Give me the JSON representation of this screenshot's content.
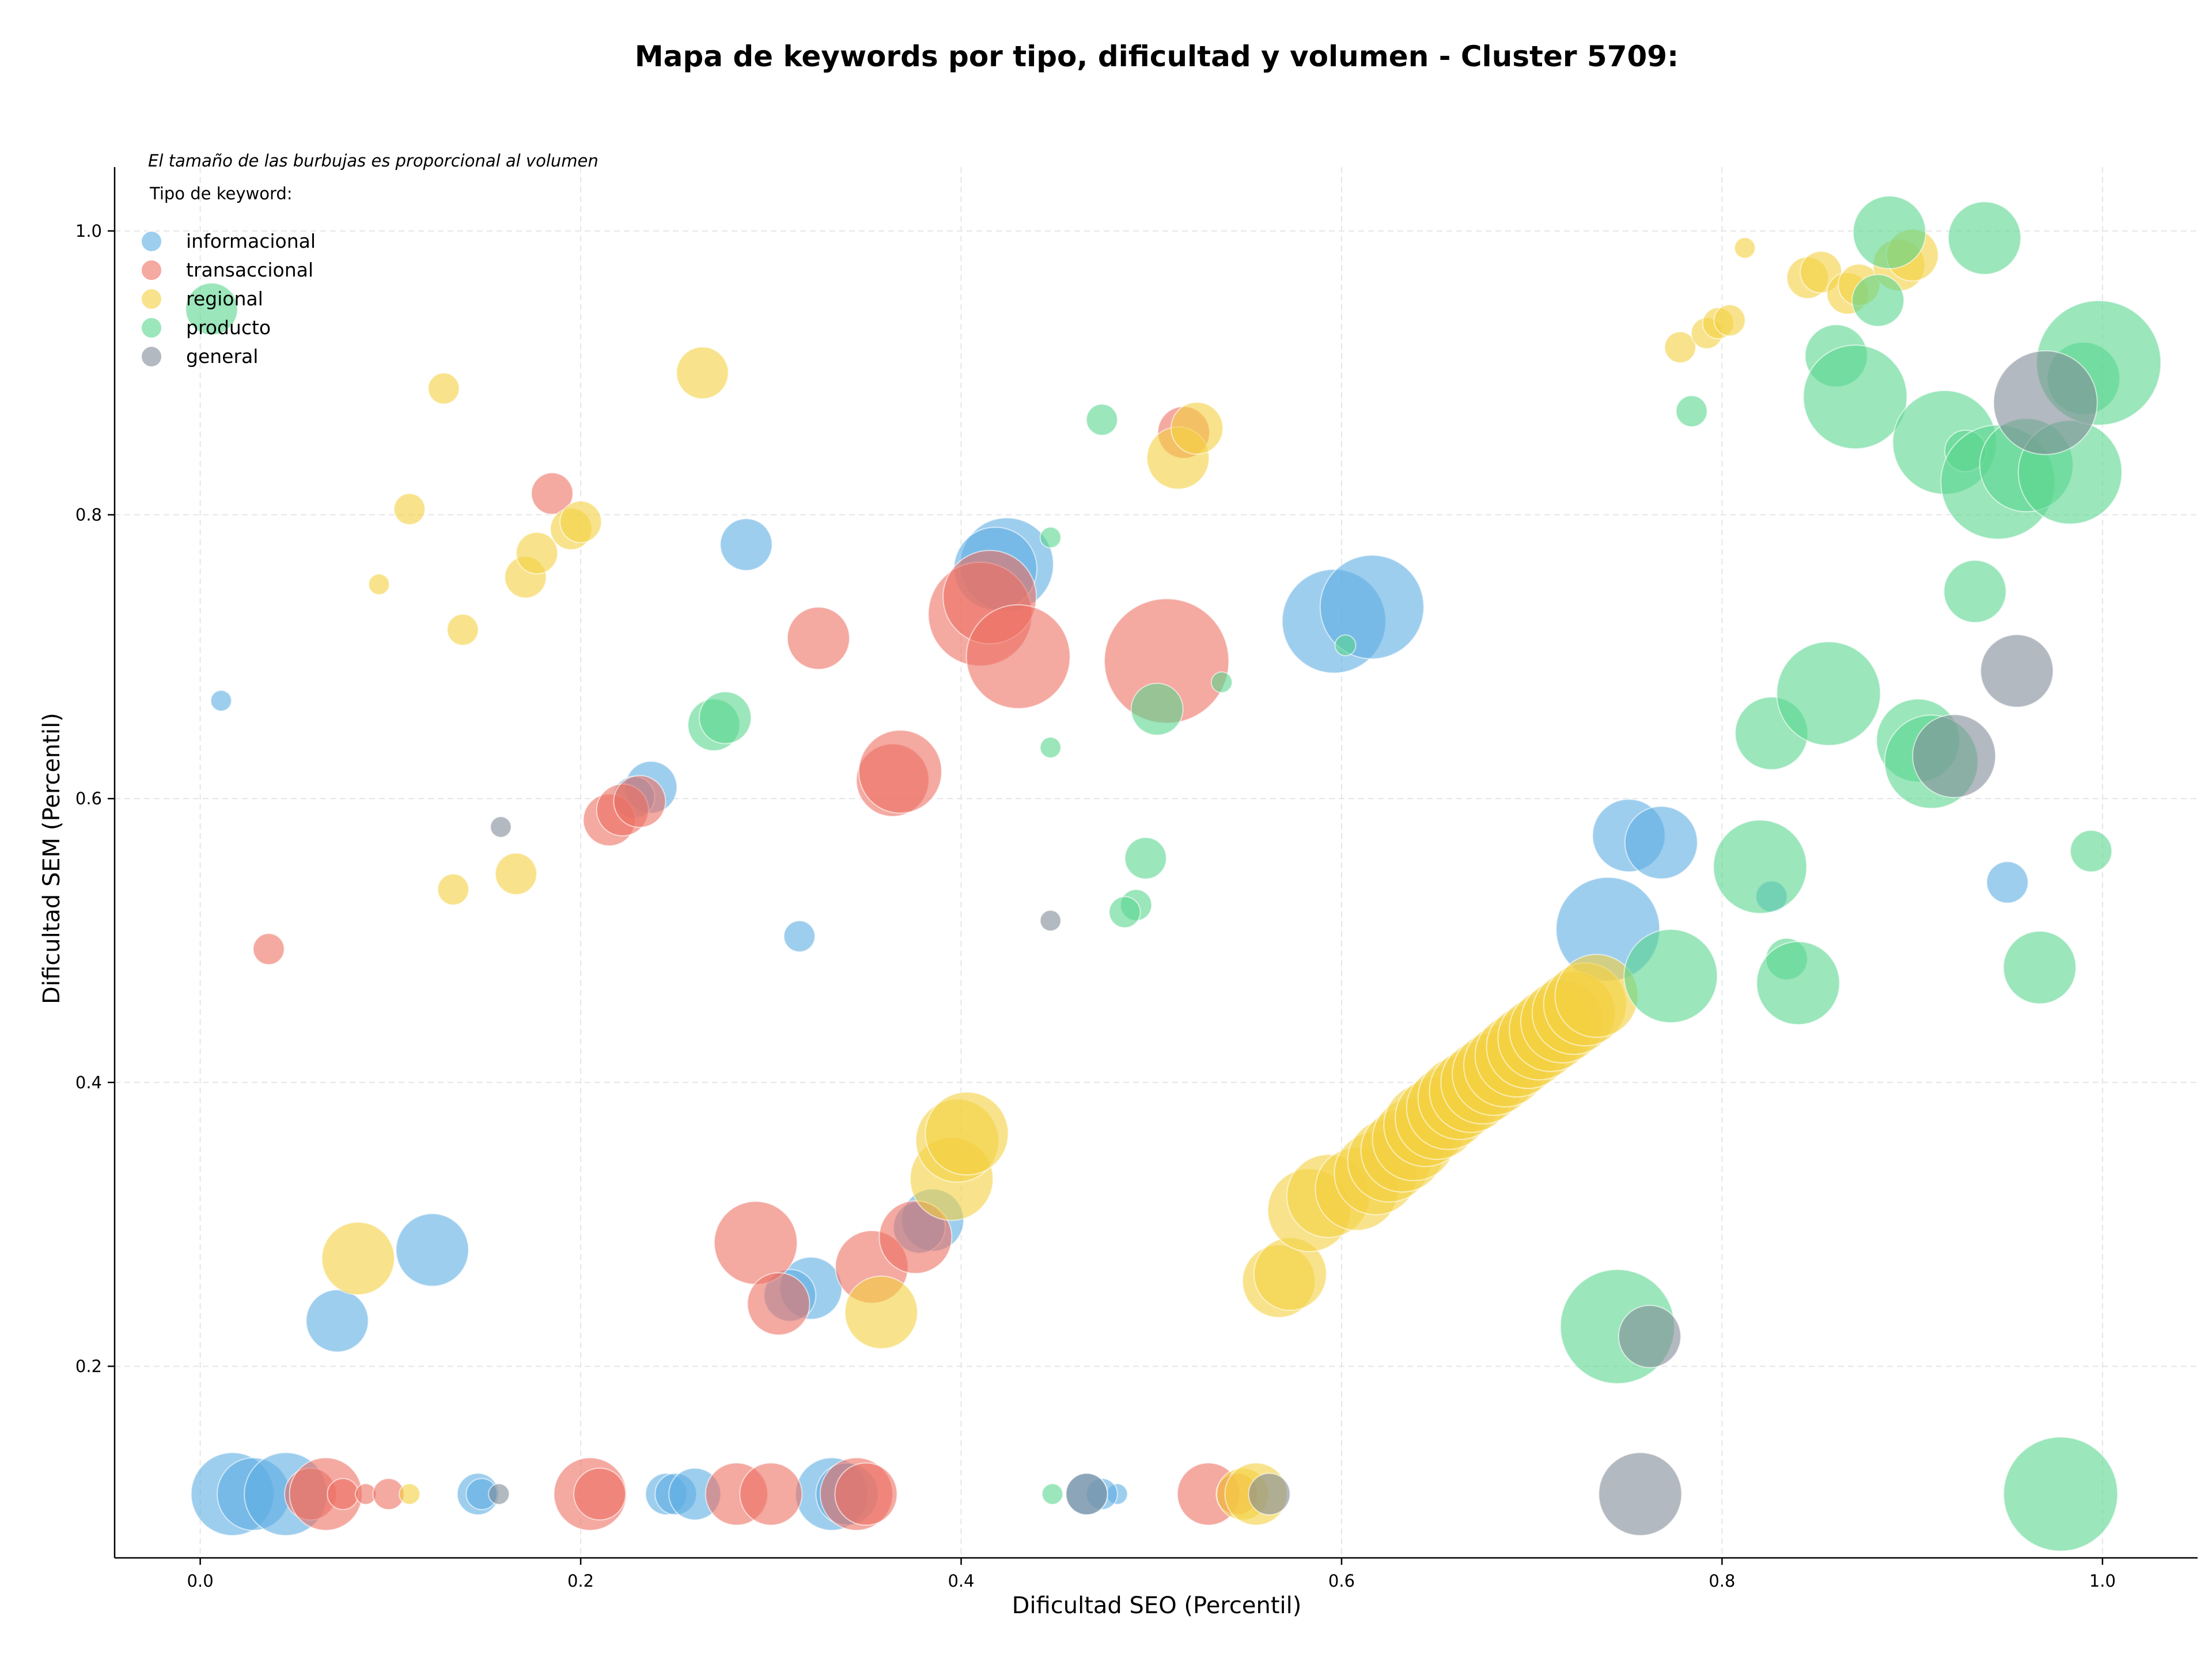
{
  "chart_data": {
    "type": "scatter",
    "title": "Mapa de keywords por tipo, dificultad y volumen - Cluster 5709:",
    "xlabel": "Dificultad SEO (Percentil)",
    "ylabel": "Dificultad SEM (Percentil)",
    "xlim": [
      -0.045,
      1.05
    ],
    "ylim": [
      0.065,
      1.045
    ],
    "xticks": [
      "0.0",
      "0.2",
      "0.4",
      "0.6",
      "0.8",
      "1.0"
    ],
    "yticks": [
      "0.2",
      "0.4",
      "0.6",
      "0.8",
      "1.0"
    ],
    "grid": true,
    "note": "El tamaño de las burbujas es proporcional al volumen",
    "legend": {
      "title": "Tipo de keyword:",
      "placement": "top-left",
      "entries": [
        "informacional",
        "transaccional",
        "regional",
        "producto",
        "general"
      ]
    },
    "series": [
      {
        "name": "informacional",
        "color": "#5dade2",
        "points": [
          [
            0.011,
            0.669,
            2
          ],
          [
            0.122,
            0.282,
            7
          ],
          [
            0.072,
            0.232,
            6
          ],
          [
            0.287,
            0.779,
            5
          ],
          [
            0.237,
            0.608,
            5
          ],
          [
            0.228,
            0.601,
            4
          ],
          [
            0.315,
            0.503,
            3
          ],
          [
            0.321,
            0.255,
            6
          ],
          [
            0.31,
            0.25,
            5
          ],
          [
            0.385,
            0.303,
            6
          ],
          [
            0.378,
            0.298,
            5
          ],
          [
            0.424,
            0.765,
            9
          ],
          [
            0.418,
            0.762,
            8
          ],
          [
            0.596,
            0.725,
            10
          ],
          [
            0.616,
            0.735,
            10
          ],
          [
            0.74,
            0.508,
            10
          ],
          [
            0.751,
            0.574,
            7
          ],
          [
            0.768,
            0.569,
            7
          ],
          [
            0.826,
            0.531,
            3
          ],
          [
            0.95,
            0.541,
            4
          ],
          [
            0.017,
            0.11,
            8
          ],
          [
            0.028,
            0.11,
            7
          ],
          [
            0.045,
            0.11,
            8
          ],
          [
            0.146,
            0.11,
            4
          ],
          [
            0.148,
            0.11,
            3
          ],
          [
            0.245,
            0.11,
            4
          ],
          [
            0.25,
            0.11,
            4
          ],
          [
            0.26,
            0.11,
            5
          ],
          [
            0.332,
            0.11,
            7
          ],
          [
            0.34,
            0.11,
            6
          ],
          [
            0.482,
            0.11,
            2
          ],
          [
            0.474,
            0.11,
            3
          ],
          [
            0.466,
            0.11,
            4
          ]
        ]
      },
      {
        "name": "transaccional",
        "color": "#ec7063",
        "points": [
          [
            0.036,
            0.494,
            3
          ],
          [
            0.185,
            0.815,
            4
          ],
          [
            0.215,
            0.585,
            5
          ],
          [
            0.222,
            0.592,
            5
          ],
          [
            0.231,
            0.598,
            5
          ],
          [
            0.325,
            0.713,
            6
          ],
          [
            0.364,
            0.613,
            7
          ],
          [
            0.368,
            0.619,
            8
          ],
          [
            0.292,
            0.287,
            8
          ],
          [
            0.304,
            0.244,
            6
          ],
          [
            0.353,
            0.27,
            7
          ],
          [
            0.376,
            0.291,
            7
          ],
          [
            0.41,
            0.73,
            10
          ],
          [
            0.415,
            0.742,
            9
          ],
          [
            0.43,
            0.7,
            10
          ],
          [
            0.508,
            0.697,
            12
          ],
          [
            0.517,
            0.858,
            5
          ],
          [
            0.058,
            0.11,
            5
          ],
          [
            0.066,
            0.11,
            7
          ],
          [
            0.075,
            0.11,
            3
          ],
          [
            0.087,
            0.11,
            2
          ],
          [
            0.099,
            0.11,
            3
          ],
          [
            0.205,
            0.11,
            7
          ],
          [
            0.21,
            0.11,
            5
          ],
          [
            0.282,
            0.11,
            6
          ],
          [
            0.3,
            0.11,
            6
          ],
          [
            0.345,
            0.11,
            7
          ],
          [
            0.35,
            0.11,
            6
          ],
          [
            0.53,
            0.11,
            6
          ],
          [
            0.545,
            0.11,
            4
          ]
        ]
      },
      {
        "name": "regional",
        "color": "#f4d03f",
        "points": [
          [
            0.128,
            0.889,
            3
          ],
          [
            0.11,
            0.804,
            3
          ],
          [
            0.094,
            0.751,
            2
          ],
          [
            0.138,
            0.719,
            3
          ],
          [
            0.171,
            0.756,
            4
          ],
          [
            0.177,
            0.773,
            4
          ],
          [
            0.195,
            0.79,
            4
          ],
          [
            0.2,
            0.795,
            4
          ],
          [
            0.133,
            0.536,
            3
          ],
          [
            0.166,
            0.547,
            4
          ],
          [
            0.264,
            0.9,
            5
          ],
          [
            0.083,
            0.276,
            7
          ],
          [
            0.358,
            0.238,
            7
          ],
          [
            0.395,
            0.332,
            8
          ],
          [
            0.398,
            0.359,
            8
          ],
          [
            0.403,
            0.364,
            8
          ],
          [
            0.514,
            0.84,
            6
          ],
          [
            0.524,
            0.861,
            5
          ],
          [
            0.567,
            0.26,
            7
          ],
          [
            0.573,
            0.265,
            7
          ],
          [
            0.583,
            0.31,
            8
          ],
          [
            0.593,
            0.32,
            8
          ],
          [
            0.608,
            0.325,
            8
          ],
          [
            0.618,
            0.336,
            8
          ],
          [
            0.625,
            0.345,
            8
          ],
          [
            0.632,
            0.352,
            8
          ],
          [
            0.638,
            0.36,
            8
          ],
          [
            0.644,
            0.37,
            8
          ],
          [
            0.65,
            0.375,
            8
          ],
          [
            0.656,
            0.382,
            8
          ],
          [
            0.662,
            0.389,
            8
          ],
          [
            0.668,
            0.394,
            8
          ],
          [
            0.674,
            0.4,
            8
          ],
          [
            0.68,
            0.406,
            8
          ],
          [
            0.686,
            0.412,
            8
          ],
          [
            0.692,
            0.419,
            8
          ],
          [
            0.698,
            0.425,
            8
          ],
          [
            0.704,
            0.431,
            8
          ],
          [
            0.71,
            0.437,
            8
          ],
          [
            0.716,
            0.443,
            8
          ],
          [
            0.722,
            0.449,
            8
          ],
          [
            0.728,
            0.455,
            8
          ],
          [
            0.734,
            0.461,
            8
          ],
          [
            0.812,
            0.988,
            2
          ],
          [
            0.778,
            0.918,
            3
          ],
          [
            0.792,
            0.928,
            3
          ],
          [
            0.798,
            0.935,
            3
          ],
          [
            0.804,
            0.937,
            3
          ],
          [
            0.845,
            0.967,
            4
          ],
          [
            0.852,
            0.971,
            4
          ],
          [
            0.866,
            0.956,
            4
          ],
          [
            0.872,
            0.962,
            4
          ],
          [
            0.893,
            0.976,
            5
          ],
          [
            0.9,
            0.983,
            5
          ],
          [
            0.11,
            0.11,
            2
          ],
          [
            0.548,
            0.11,
            5
          ],
          [
            0.555,
            0.11,
            6
          ]
        ]
      },
      {
        "name": "producto",
        "color": "#58d68d",
        "points": [
          [
            0.006,
            0.945,
            5
          ],
          [
            0.27,
            0.652,
            5
          ],
          [
            0.276,
            0.657,
            5
          ],
          [
            0.474,
            0.867,
            3
          ],
          [
            0.447,
            0.784,
            2
          ],
          [
            0.447,
            0.636,
            2
          ],
          [
            0.503,
            0.663,
            5
          ],
          [
            0.537,
            0.682,
            2
          ],
          [
            0.497,
            0.558,
            4
          ],
          [
            0.492,
            0.525,
            3
          ],
          [
            0.486,
            0.52,
            3
          ],
          [
            0.602,
            0.708,
            2
          ],
          [
            0.784,
            0.873,
            3
          ],
          [
            0.82,
            0.552,
            9
          ],
          [
            0.826,
            0.646,
            7
          ],
          [
            0.834,
            0.487,
            4
          ],
          [
            0.84,
            0.47,
            8
          ],
          [
            0.856,
            0.674,
            10
          ],
          [
            0.86,
            0.912,
            6
          ],
          [
            0.87,
            0.883,
            10
          ],
          [
            0.882,
            0.951,
            5
          ],
          [
            0.888,
            0.999,
            7
          ],
          [
            0.903,
            0.641,
            8
          ],
          [
            0.91,
            0.626,
            9
          ],
          [
            0.917,
            0.851,
            10
          ],
          [
            0.928,
            0.845,
            4
          ],
          [
            0.933,
            0.746,
            6
          ],
          [
            0.938,
            0.995,
            7
          ],
          [
            0.945,
            0.823,
            11
          ],
          [
            0.96,
            0.835,
            9
          ],
          [
            0.983,
            0.83,
            10
          ],
          [
            0.99,
            0.896,
            7
          ],
          [
            0.998,
            0.907,
            12
          ],
          [
            0.994,
            0.563,
            4
          ],
          [
            0.967,
            0.481,
            7
          ],
          [
            0.773,
            0.475,
            9
          ],
          [
            0.745,
            0.228,
            11
          ],
          [
            0.448,
            0.11,
            2
          ],
          [
            0.978,
            0.11,
            11
          ]
        ]
      },
      {
        "name": "general",
        "color": "#808b96",
        "points": [
          [
            0.158,
            0.58,
            2
          ],
          [
            0.447,
            0.514,
            2
          ],
          [
            0.922,
            0.63,
            8
          ],
          [
            0.955,
            0.69,
            7
          ],
          [
            0.97,
            0.879,
            10
          ],
          [
            0.762,
            0.221,
            6
          ],
          [
            0.157,
            0.11,
            2
          ],
          [
            0.466,
            0.11,
            4
          ],
          [
            0.562,
            0.11,
            4
          ],
          [
            0.757,
            0.11,
            8
          ]
        ]
      }
    ]
  }
}
